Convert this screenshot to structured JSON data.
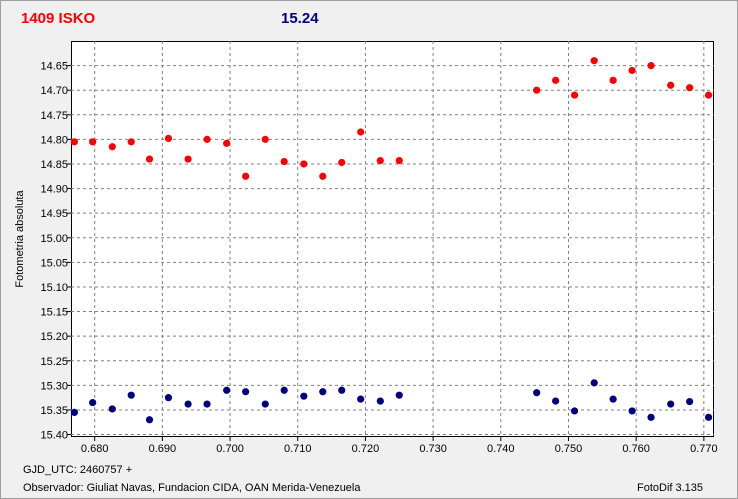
{
  "header": {
    "object_name": "1409 ISKO",
    "magnitude": "15.24",
    "object_color": "#ff0000",
    "magnitude_color": "#00007f"
  },
  "footer": {
    "gjd_label": "GJD_UTC: 2460757 +",
    "observer": "Observador: Giuliat Navas, Fundacion CIDA, OAN  Merida-Venezuela",
    "software": "FotoDif 3.135"
  },
  "chart_data": {
    "type": "scatter",
    "ylabel": "Fotometria absoluta",
    "xlabel": "",
    "xlim": [
      0.6765,
      0.7715
    ],
    "ylim": [
      14.6,
      15.405
    ],
    "y_inverted": true,
    "grid": true,
    "x_ticks": [
      0.68,
      0.69,
      0.7,
      0.71,
      0.72,
      0.73,
      0.74,
      0.75,
      0.76,
      0.77
    ],
    "x_tick_labels": [
      "0.680",
      "0.690",
      "0.700",
      "0.710",
      "0.720",
      "0.730",
      "0.740",
      "0.750",
      "0.760",
      "0.770"
    ],
    "y_ticks": [
      14.65,
      14.7,
      14.75,
      14.8,
      14.85,
      14.9,
      14.95,
      15.0,
      15.05,
      15.1,
      15.15,
      15.2,
      15.25,
      15.3,
      15.35,
      15.4
    ],
    "y_tick_labels": [
      "14.65",
      "14.70",
      "14.75",
      "14.80",
      "14.85",
      "14.90",
      "14.95",
      "15.00",
      "15.05",
      "15.10",
      "15.15",
      "15.20",
      "15.25",
      "15.30",
      "15.35",
      "15.40"
    ],
    "series": [
      {
        "color": "#ff0000",
        "x": [
          0.677,
          0.6797,
          0.6826,
          0.6854,
          0.6881,
          0.6909,
          0.6938,
          0.6966,
          0.6995,
          0.7023,
          0.7052,
          0.708,
          0.7109,
          0.7137,
          0.7165,
          0.7193,
          0.7222,
          0.725,
          0.7453,
          0.7481,
          0.7509,
          0.7538,
          0.7566,
          0.7594,
          0.7622,
          0.7651,
          0.7679,
          0.7707
        ],
        "y": [
          14.805,
          14.805,
          14.815,
          14.805,
          14.84,
          14.798,
          14.84,
          14.8,
          14.808,
          14.875,
          14.8,
          14.845,
          14.85,
          14.875,
          14.847,
          14.785,
          14.843,
          14.843,
          14.7,
          14.68,
          14.71,
          14.64,
          14.68,
          14.66,
          14.65,
          14.69,
          14.695,
          14.71
        ]
      },
      {
        "color": "#00007f",
        "x": [
          0.677,
          0.6797,
          0.6826,
          0.6854,
          0.6881,
          0.6909,
          0.6938,
          0.6966,
          0.6995,
          0.7023,
          0.7052,
          0.708,
          0.7109,
          0.7137,
          0.7165,
          0.7193,
          0.7222,
          0.725,
          0.7453,
          0.7481,
          0.7509,
          0.7538,
          0.7566,
          0.7594,
          0.7622,
          0.7651,
          0.7679,
          0.7707
        ],
        "y": [
          15.355,
          15.335,
          15.348,
          15.32,
          15.37,
          15.325,
          15.338,
          15.338,
          15.31,
          15.313,
          15.338,
          15.31,
          15.322,
          15.313,
          15.31,
          15.328,
          15.332,
          15.32,
          15.315,
          15.332,
          15.352,
          15.295,
          15.328,
          15.352,
          15.365,
          15.338,
          15.333,
          15.365
        ]
      }
    ]
  }
}
